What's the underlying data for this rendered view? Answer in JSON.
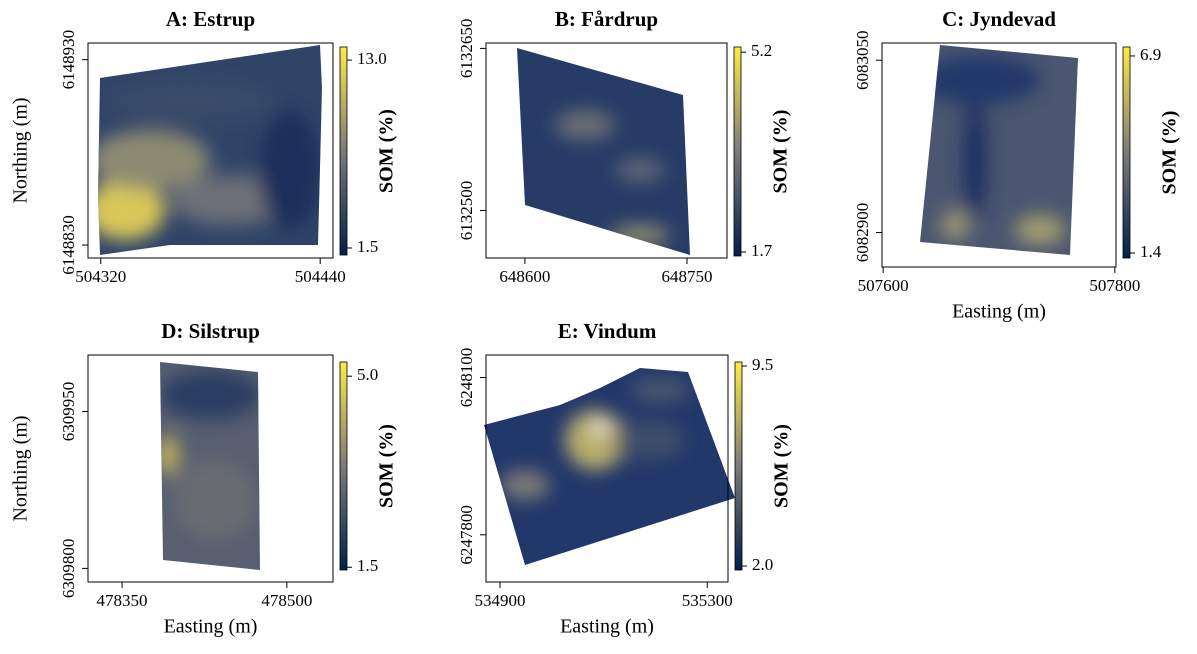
{
  "colormap": [
    "#00204d",
    "#7c7b78",
    "#ffea46"
  ],
  "panels": [
    {
      "title": "A: Estrup",
      "y_label": "Northing (m)",
      "xlim": [
        504313,
        504447
      ],
      "xticks": [
        504320,
        504440
      ],
      "ylim": [
        6148823,
        6148939
      ],
      "yticks": [
        6148930,
        6148830
      ],
      "colorbar": {
        "label": "SOM (%)",
        "lim": [
          1.07,
          13.8
        ],
        "ticks": [
          {
            "value": 13,
            "label": "13.0"
          },
          1.5
        ]
      }
    },
    {
      "title": "B: Fårdrup",
      "xlim": [
        648564,
        648787
      ],
      "xticks": [
        648600,
        648750
      ],
      "ylim": [
        6132456,
        6132655
      ],
      "yticks": [
        6132650,
        6132500
      ],
      "colorbar": {
        "label": "SOM (%)",
        "lim": [
          1.63,
          5.29
        ],
        "ticks": [
          5.2,
          1.7
        ]
      }
    },
    {
      "title": "C: Jyndevad",
      "x_label": "Easting (m)",
      "xlim": [
        507599,
        507801
      ],
      "xticks": [
        507600,
        507800
      ],
      "ylim": [
        6082870,
        6083065
      ],
      "yticks": [
        6083050,
        6082900
      ],
      "colorbar": {
        "label": "SOM (%)",
        "lim": [
          1.26,
          7.15
        ],
        "ticks": [
          6.9,
          1.4
        ]
      }
    },
    {
      "title": "D: Silstrup",
      "x_label": "Easting (m)",
      "y_label": "Northing (m)",
      "xlim": [
        478319,
        478542
      ],
      "xticks": [
        478350,
        478500
      ],
      "ylim": [
        6309787,
        6310004
      ],
      "yticks": [
        6309950,
        6309800
      ],
      "colorbar": {
        "label": "SOM (%)",
        "lim": [
          1.45,
          5.26
        ],
        "ticks": [
          {
            "value": 5,
            "label": "5.0"
          },
          1.5
        ]
      }
    },
    {
      "title": "E: Vindum",
      "x_label": "Easting (m)",
      "xlim": [
        534873,
        535340
      ],
      "xticks": [
        534900,
        535300
      ],
      "ylim": [
        6247710,
        6248143
      ],
      "yticks": [
        6248100,
        6247800
      ],
      "colorbar": {
        "label": "SOM (%)",
        "lim": [
          1.85,
          9.65
        ],
        "ticks": [
          9.5,
          {
            "value": 2,
            "label": "2.0"
          }
        ]
      }
    }
  ]
}
